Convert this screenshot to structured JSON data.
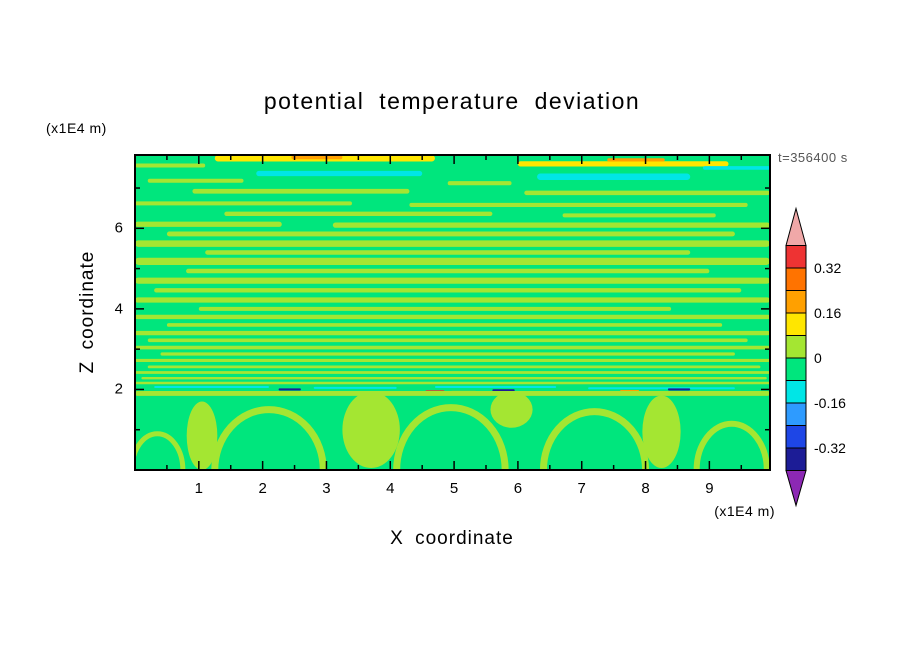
{
  "chart_data": {
    "type": "heatmap",
    "title": "potential temperature deviation",
    "xlabel": "X coordinate",
    "ylabel": "Z coordinate",
    "x_unit": "(x1E4 m)",
    "y_unit": "(x1E4 m)",
    "time_annotation": "t=356400 s",
    "xlim": [
      0,
      9.95
    ],
    "ylim": [
      0,
      7.82
    ],
    "x_tick_values": [
      1,
      2,
      3,
      4,
      5,
      6,
      7,
      8,
      9
    ],
    "x_tick_labels": [
      "1",
      "2",
      "3",
      "4",
      "5",
      "6",
      "7",
      "8",
      "9"
    ],
    "x_minor_tick_values": [
      0.5,
      1.5,
      2.5,
      3.5,
      4.5,
      5.5,
      6.5,
      7.5,
      8.5,
      9.5
    ],
    "y_tick_values": [
      2,
      4,
      6
    ],
    "y_tick_labels": [
      "2",
      "4",
      "6"
    ],
    "y_minor_tick_values": [
      1,
      3,
      5,
      7
    ],
    "legend_position": "right",
    "grid": false,
    "description": "Filled contour plot of potential temperature deviation (K) in an x-z vertical cross-section at t=356400 s. Field is near zero (green, -0.08..0) almost everywhere, with thin horizontal wave-like layers of slightly positive deviation (yellow-green, 0..0.08) stacked between z=2 and z=7.8. Near the domain top are stronger positive streaks (yellow/orange, 0.08..0.32) and slightly negative streaks (cyan). A sharp layered interface at z~2 contains small extrema (red, orange, navy, cyan dashes). Below z~2 a convective boundary layer shows plume-shaped yellow-green structures over green blobs.",
    "palette": {
      "green": "#00E67D",
      "ygreen": "#A4E632",
      "yellow": "#FFE600",
      "orange": "#FFA000",
      "orange2": "#FF7300",
      "red": "#EE3333",
      "salmon": "#F0A8A8",
      "cyan": "#00E6E6",
      "lblue": "#2E9BFF",
      "blue": "#1E46E6",
      "navy": "#1C1C96",
      "purple": "#8C28B4"
    },
    "colorbar": {
      "orientation": "vertical",
      "boundary_labels": [
        "0.32",
        "0.16",
        "0",
        "-0.16",
        "-0.32"
      ],
      "level_step": 0.08,
      "levels": [
        -0.4,
        -0.32,
        -0.24,
        -0.16,
        -0.08,
        0,
        0.08,
        0.16,
        0.24,
        0.32,
        0.4
      ],
      "arrow_top_color": "salmon",
      "arrow_bottom_color": "purple",
      "segments": [
        {
          "color": "red",
          "label": "0.32"
        },
        {
          "color": "orange2",
          "label": ""
        },
        {
          "color": "orange",
          "label": "0.16"
        },
        {
          "color": "yellow",
          "label": ""
        },
        {
          "color": "ygreen",
          "label": "0"
        },
        {
          "color": "green",
          "label": ""
        },
        {
          "color": "cyan",
          "label": "-0.16"
        },
        {
          "color": "lblue",
          "label": ""
        },
        {
          "color": "blue",
          "label": "-0.32"
        },
        {
          "color": "navy",
          "label": ""
        }
      ]
    },
    "render": {
      "background_color": "green",
      "streaks": [
        {
          "c": "yellow",
          "z": 7.74,
          "h": 0.16,
          "x0": 1.25,
          "x1": 4.7
        },
        {
          "c": "orange",
          "z": 7.76,
          "h": 0.09,
          "x0": 2.45,
          "x1": 3.25
        },
        {
          "c": "yellow",
          "z": 7.6,
          "h": 0.13,
          "x0": 6.0,
          "x1": 9.3
        },
        {
          "c": "orange",
          "z": 7.7,
          "h": 0.08,
          "x0": 7.4,
          "x1": 8.3
        },
        {
          "c": "cyan",
          "z": 7.36,
          "h": 0.13,
          "x0": 1.9,
          "x1": 4.5
        },
        {
          "c": "cyan",
          "z": 7.28,
          "h": 0.16,
          "x0": 6.3,
          "x1": 8.7
        },
        {
          "c": "cyan",
          "z": 7.5,
          "h": 0.09,
          "x0": 8.9,
          "x1": 9.95
        },
        {
          "z": 7.56,
          "h": 0.1,
          "x0": 0.0,
          "x1": 1.1
        },
        {
          "z": 7.18,
          "h": 0.1,
          "x0": 0.2,
          "x1": 1.7
        },
        {
          "z": 7.12,
          "h": 0.1,
          "x0": 4.9,
          "x1": 5.9
        },
        {
          "z": 6.92,
          "h": 0.12,
          "x0": 0.9,
          "x1": 4.3
        },
        {
          "z": 6.88,
          "h": 0.11,
          "x0": 6.1,
          "x1": 9.95
        },
        {
          "z": 6.62,
          "h": 0.1,
          "x0": 0.0,
          "x1": 3.4
        },
        {
          "z": 6.58,
          "h": 0.1,
          "x0": 4.3,
          "x1": 9.6
        },
        {
          "z": 6.36,
          "h": 0.11,
          "x0": 1.4,
          "x1": 5.6
        },
        {
          "z": 6.32,
          "h": 0.1,
          "x0": 6.7,
          "x1": 9.1
        },
        {
          "z": 6.1,
          "h": 0.13,
          "x0": 0.0,
          "x1": 2.3
        },
        {
          "z": 6.08,
          "h": 0.13,
          "x0": 3.1,
          "x1": 9.95
        },
        {
          "z": 5.86,
          "h": 0.12,
          "x0": 0.5,
          "x1": 9.4
        },
        {
          "z": 5.62,
          "h": 0.16,
          "x0": 0.0,
          "x1": 9.95
        },
        {
          "z": 5.4,
          "h": 0.11,
          "x0": 1.1,
          "x1": 8.7
        },
        {
          "z": 5.18,
          "h": 0.18,
          "x0": 0.0,
          "x1": 9.95
        },
        {
          "z": 4.94,
          "h": 0.11,
          "x0": 0.8,
          "x1": 9.0
        },
        {
          "z": 4.7,
          "h": 0.15,
          "x0": 0.0,
          "x1": 9.95
        },
        {
          "z": 4.46,
          "h": 0.11,
          "x0": 0.3,
          "x1": 9.5
        },
        {
          "z": 4.22,
          "h": 0.13,
          "x0": 0.0,
          "x1": 9.95
        },
        {
          "z": 4.0,
          "h": 0.1,
          "x0": 1.0,
          "x1": 8.4
        },
        {
          "z": 3.8,
          "h": 0.11,
          "x0": 0.0,
          "x1": 9.95
        },
        {
          "z": 3.6,
          "h": 0.09,
          "x0": 0.5,
          "x1": 9.2
        },
        {
          "z": 3.4,
          "h": 0.11,
          "x0": 0.0,
          "x1": 9.95
        },
        {
          "z": 3.22,
          "h": 0.09,
          "x0": 0.2,
          "x1": 9.6
        },
        {
          "z": 3.04,
          "h": 0.09,
          "x0": 0.0,
          "x1": 9.95
        },
        {
          "z": 2.88,
          "h": 0.08,
          "x0": 0.4,
          "x1": 9.4
        },
        {
          "z": 2.72,
          "h": 0.08,
          "x0": 0.0,
          "x1": 9.95
        },
        {
          "z": 2.56,
          "h": 0.07,
          "x0": 0.2,
          "x1": 9.8
        },
        {
          "z": 2.42,
          "h": 0.07,
          "x0": 0.0,
          "x1": 9.95
        },
        {
          "z": 2.28,
          "h": 0.06,
          "x0": 0.1,
          "x1": 9.9
        },
        {
          "z": 2.16,
          "h": 0.06,
          "x0": 0.0,
          "x1": 9.95
        },
        {
          "c": "cyan",
          "z": 2.06,
          "h": 0.05,
          "x0": 0.3,
          "x1": 2.1
        },
        {
          "c": "cyan",
          "z": 2.04,
          "h": 0.05,
          "x0": 2.8,
          "x1": 4.1
        },
        {
          "c": "cyan",
          "z": 2.06,
          "h": 0.05,
          "x0": 4.7,
          "x1": 6.6
        },
        {
          "c": "cyan",
          "z": 2.03,
          "h": 0.05,
          "x0": 7.1,
          "x1": 9.4
        },
        {
          "c": "navy",
          "z": 2.0,
          "h": 0.05,
          "x0": 2.25,
          "x1": 2.6
        },
        {
          "c": "navy",
          "z": 1.98,
          "h": 0.05,
          "x0": 5.6,
          "x1": 5.95
        },
        {
          "c": "navy",
          "z": 2.0,
          "h": 0.05,
          "x0": 8.35,
          "x1": 8.7
        },
        {
          "c": "red",
          "z": 1.95,
          "h": 0.06,
          "x0": 4.55,
          "x1": 4.85
        },
        {
          "c": "red",
          "z": 1.93,
          "h": 0.05,
          "x0": 6.15,
          "x1": 6.4
        },
        {
          "c": "orange",
          "z": 1.94,
          "h": 0.05,
          "x0": 4.95,
          "x1": 5.35
        },
        {
          "c": "orange",
          "z": 1.96,
          "h": 0.05,
          "x0": 7.6,
          "x1": 7.9
        },
        {
          "z": 1.9,
          "h": 0.12,
          "x0": 0.0,
          "x1": 9.95
        }
      ],
      "blobs": [
        {
          "cx": 3.7,
          "cz": 1.0,
          "rx": 0.45,
          "rz": 0.95
        },
        {
          "cx": 5.9,
          "cz": 1.5,
          "rx": 0.33,
          "rz": 0.45
        },
        {
          "cx": 8.25,
          "cz": 0.95,
          "rx": 0.3,
          "rz": 0.9
        },
        {
          "cx": 1.05,
          "cz": 0.85,
          "rx": 0.24,
          "rz": 0.85
        }
      ],
      "plume_arcs": [
        {
          "cx": 2.1,
          "rx": 0.85,
          "zbase": 0.0,
          "ztop": 1.5,
          "w": 7
        },
        {
          "cx": 4.95,
          "rx": 0.85,
          "zbase": 0.0,
          "ztop": 1.55,
          "w": 7
        },
        {
          "cx": 7.2,
          "rx": 0.8,
          "zbase": 0.0,
          "ztop": 1.45,
          "w": 7
        },
        {
          "cx": 9.35,
          "rx": 0.55,
          "zbase": 0.0,
          "ztop": 1.15,
          "w": 6
        },
        {
          "cx": 0.35,
          "rx": 0.4,
          "zbase": 0.0,
          "ztop": 0.9,
          "w": 5
        }
      ]
    }
  }
}
